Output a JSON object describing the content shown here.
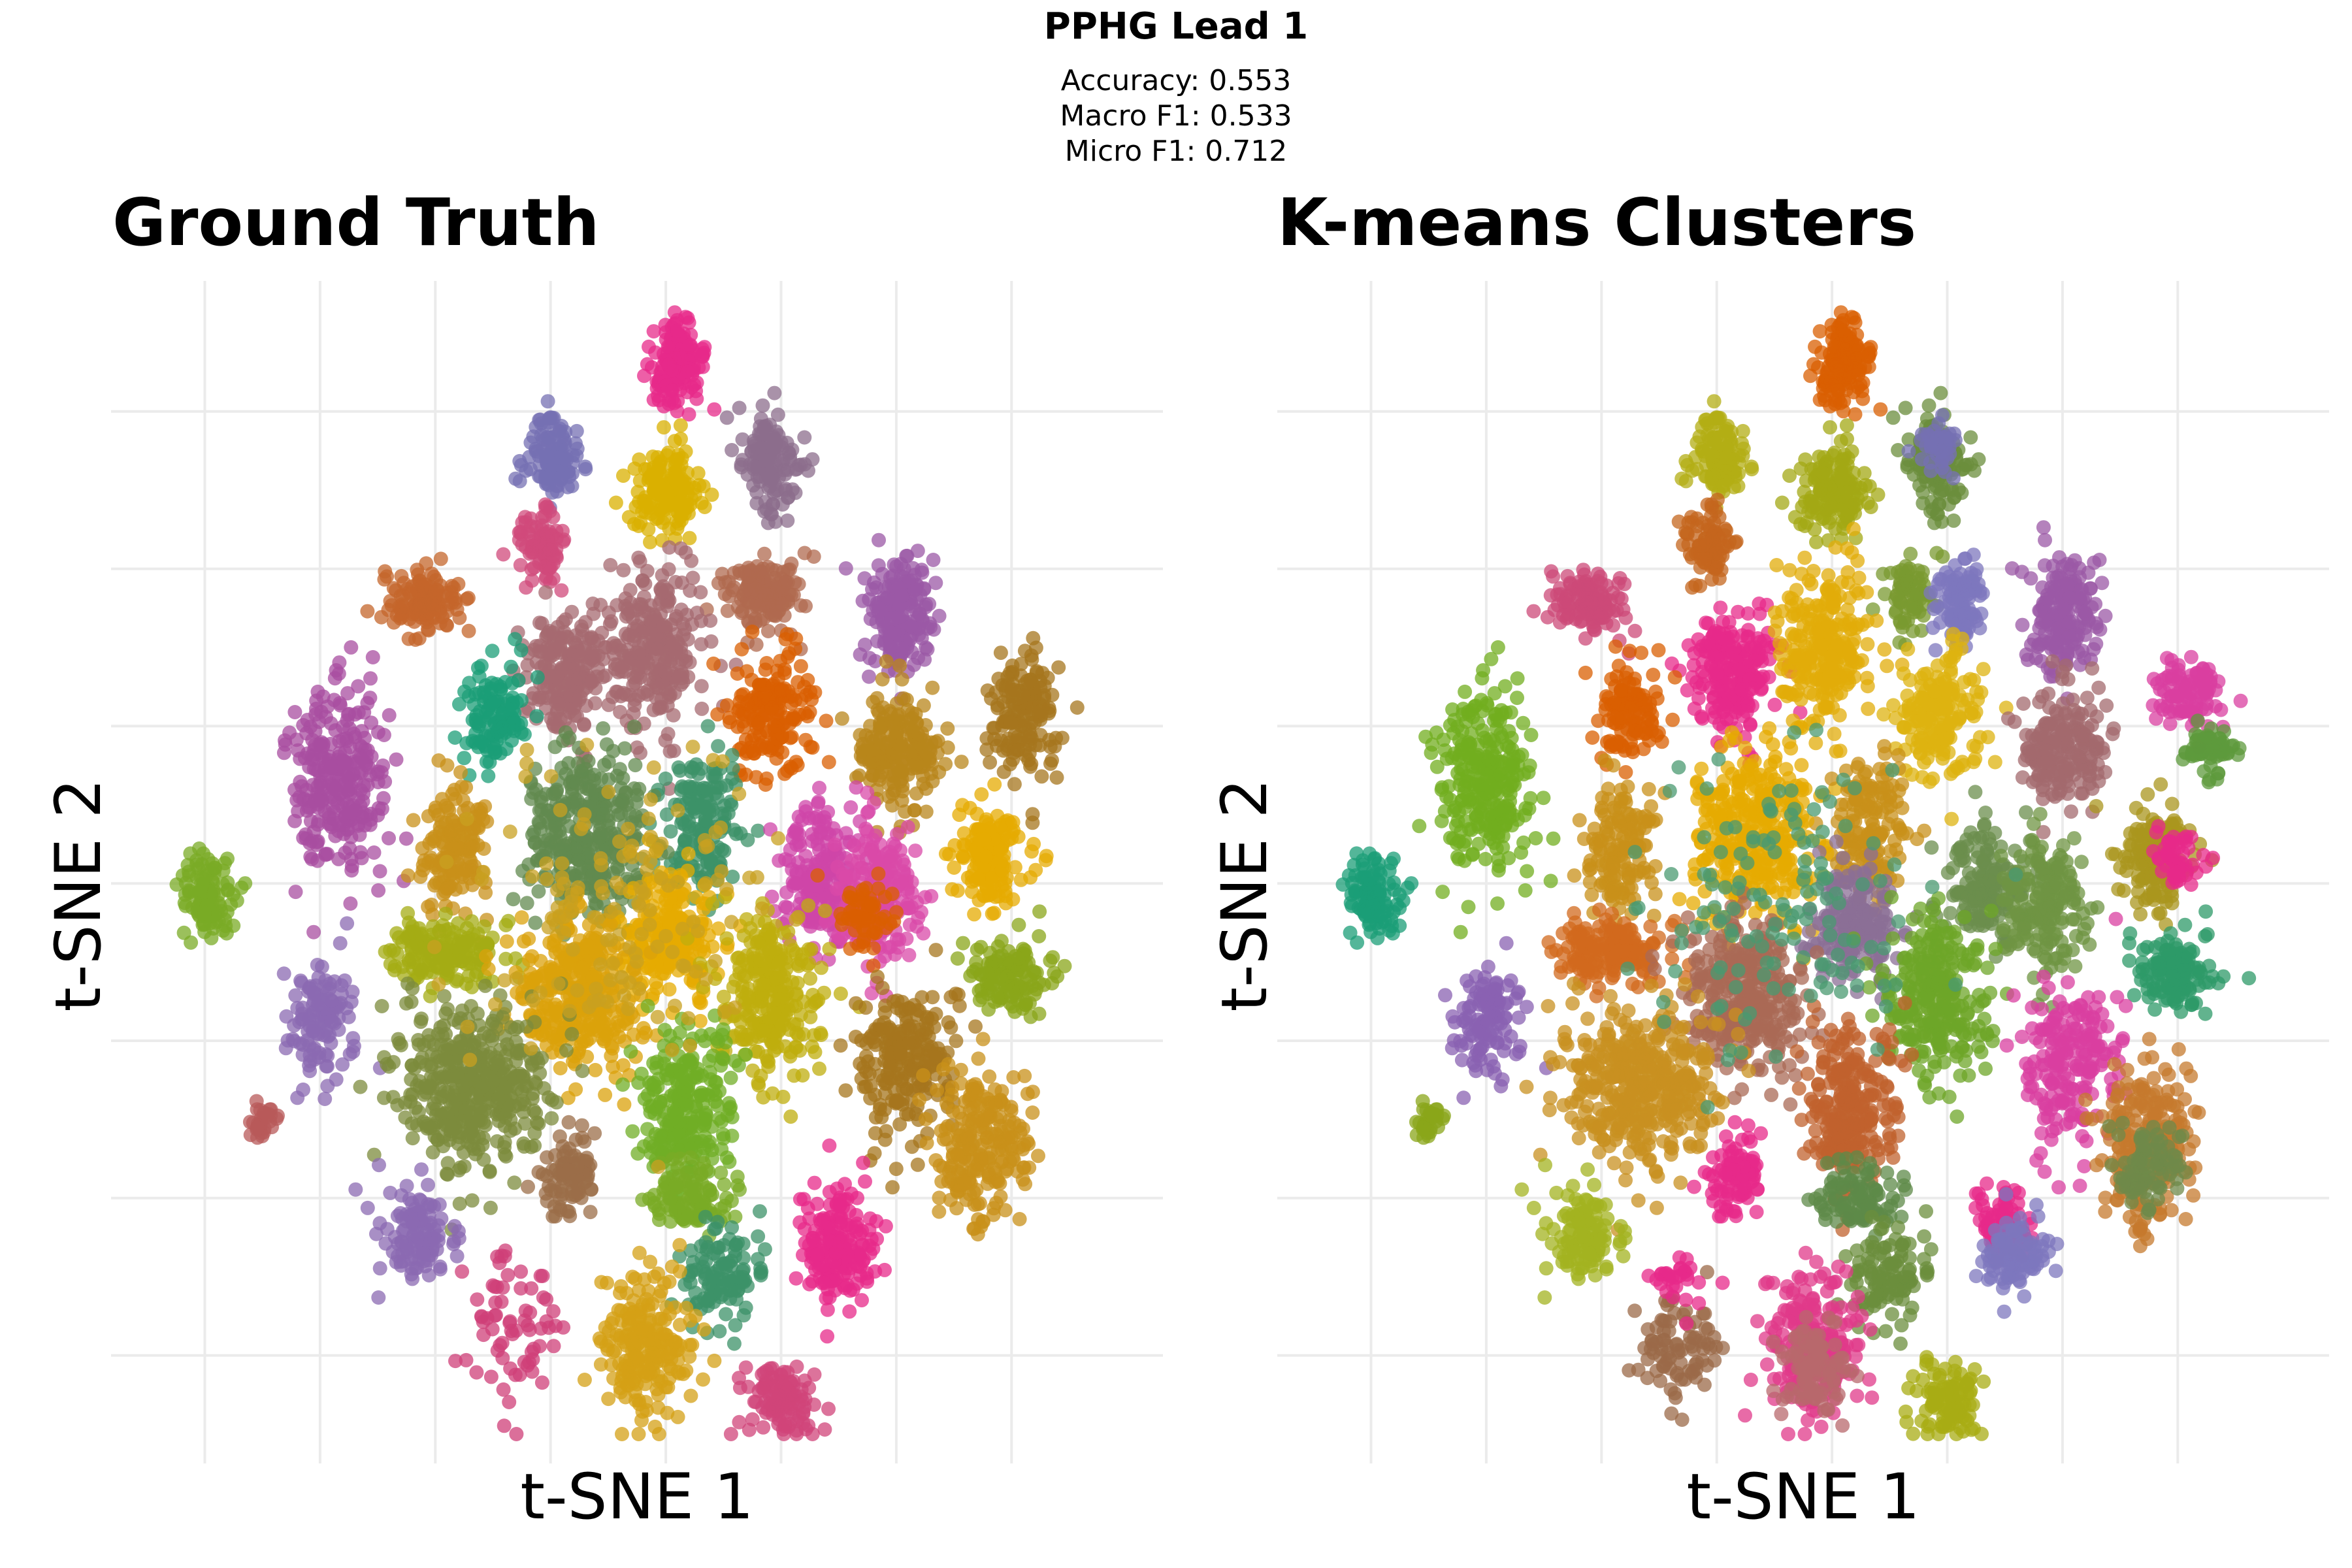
{
  "figure": {
    "title": "PPHG Lead 1",
    "accuracy_label": "Accuracy: 0.553",
    "macro_f1_label": "Macro F1: 0.533",
    "micro_f1_label": "Micro F1: 0.712"
  },
  "chart_data": [
    {
      "type": "scatter",
      "title": "Ground Truth",
      "xlabel": "t-SNE 1",
      "ylabel": "t-SNE 2",
      "xlim": [
        0,
        100
      ],
      "ylim": [
        0,
        100
      ],
      "grid": true,
      "tick_labels_shown": false,
      "legend": "none",
      "x_grid": [
        5,
        17,
        29,
        41,
        53,
        65,
        77,
        89
      ],
      "y_grid": [
        7,
        21,
        35,
        49,
        63,
        77,
        91
      ],
      "clusters": [
        {
          "x": 54,
          "y": 95,
          "sx": 1.4,
          "sy": 2.0,
          "n": 160,
          "color": "#e7298a"
        },
        {
          "x": 41,
          "y": 87,
          "sx": 1.4,
          "sy": 1.8,
          "n": 110,
          "color": "#7570b3"
        },
        {
          "x": 53,
          "y": 84,
          "sx": 1.8,
          "sy": 1.9,
          "n": 150,
          "color": "#d9b000"
        },
        {
          "x": 64,
          "y": 86,
          "sx": 1.5,
          "sy": 2.6,
          "n": 140,
          "color": "#8c6d8c"
        },
        {
          "x": 40,
          "y": 79,
          "sx": 1.3,
          "sy": 1.6,
          "n": 90,
          "color": "#d04a7b"
        },
        {
          "x": 28,
          "y": 74,
          "sx": 1.9,
          "sy": 1.5,
          "n": 130,
          "color": "#c4652b"
        },
        {
          "x": 63,
          "y": 75,
          "sx": 2.0,
          "sy": 1.7,
          "n": 150,
          "color": "#b06a4f"
        },
        {
          "x": 77,
          "y": 73,
          "sx": 1.8,
          "sy": 2.9,
          "n": 180,
          "color": "#9b58a5"
        },
        {
          "x": 43,
          "y": 68,
          "sx": 2.3,
          "sy": 2.6,
          "n": 220,
          "color": "#a66a70"
        },
        {
          "x": 52,
          "y": 70,
          "sx": 2.4,
          "sy": 3.6,
          "n": 260,
          "color": "#a66a70"
        },
        {
          "x": 35,
          "y": 64,
          "sx": 1.7,
          "sy": 2.3,
          "n": 120,
          "color": "#1b9e77"
        },
        {
          "x": 64,
          "y": 64,
          "sx": 2.2,
          "sy": 2.8,
          "n": 180,
          "color": "#d95f02"
        },
        {
          "x": 90,
          "y": 64,
          "sx": 1.8,
          "sy": 2.9,
          "n": 160,
          "color": "#a6761d"
        },
        {
          "x": 77,
          "y": 61,
          "sx": 2.2,
          "sy": 2.5,
          "n": 200,
          "color": "#b8861b"
        },
        {
          "x": 19,
          "y": 58,
          "sx": 2.5,
          "sy": 3.9,
          "n": 280,
          "color": "#a84da0"
        },
        {
          "x": 57,
          "y": 54,
          "sx": 1.9,
          "sy": 3.2,
          "n": 160,
          "color": "#3c9168"
        },
        {
          "x": 45,
          "y": 53,
          "sx": 3.2,
          "sy": 3.8,
          "n": 340,
          "color": "#62894f"
        },
        {
          "x": 31,
          "y": 52,
          "sx": 1.8,
          "sy": 2.9,
          "n": 150,
          "color": "#c8901a"
        },
        {
          "x": 69,
          "y": 50,
          "sx": 2.0,
          "sy": 3.1,
          "n": 200,
          "color": "#cf46a8"
        },
        {
          "x": 75,
          "y": 48,
          "sx": 2.1,
          "sy": 2.9,
          "n": 210,
          "color": "#d94aa8"
        },
        {
          "x": 74,
          "y": 46,
          "sx": 1.6,
          "sy": 1.6,
          "n": 60,
          "color": "#d95f02"
        },
        {
          "x": 87,
          "y": 51,
          "sx": 2.0,
          "sy": 2.1,
          "n": 160,
          "color": "#e6ab02"
        },
        {
          "x": 5,
          "y": 48,
          "sx": 1.5,
          "sy": 1.7,
          "n": 110,
          "color": "#7aab26"
        },
        {
          "x": 53,
          "y": 44,
          "sx": 2.5,
          "sy": 3.0,
          "n": 230,
          "color": "#e6ab02"
        },
        {
          "x": 30,
          "y": 43,
          "sx": 2.9,
          "sy": 1.4,
          "n": 180,
          "color": "#a4ac14"
        },
        {
          "x": 44,
          "y": 39,
          "sx": 3.0,
          "sy": 3.4,
          "n": 340,
          "color": "#dba10b"
        },
        {
          "x": 64,
          "y": 39,
          "sx": 2.6,
          "sy": 3.7,
          "n": 280,
          "color": "#bfad0e"
        },
        {
          "x": 89,
          "y": 41,
          "sx": 2.1,
          "sy": 1.6,
          "n": 130,
          "color": "#89a51a"
        },
        {
          "x": 17,
          "y": 37,
          "sx": 1.6,
          "sy": 2.5,
          "n": 120,
          "color": "#8b6ab1"
        },
        {
          "x": 78,
          "y": 33,
          "sx": 2.6,
          "sy": 3.8,
          "n": 230,
          "color": "#a6761d"
        },
        {
          "x": 33,
          "y": 31,
          "sx": 3.9,
          "sy": 3.4,
          "n": 420,
          "color": "#7c8b3c"
        },
        {
          "x": 55,
          "y": 29,
          "sx": 2.4,
          "sy": 3.5,
          "n": 260,
          "color": "#70ad26"
        },
        {
          "x": 86,
          "y": 26,
          "sx": 2.4,
          "sy": 3.5,
          "n": 230,
          "color": "#c8901a"
        },
        {
          "x": 11,
          "y": 28,
          "sx": 0.8,
          "sy": 1.0,
          "n": 30,
          "color": "#b85a5a"
        },
        {
          "x": 43,
          "y": 23,
          "sx": 1.5,
          "sy": 1.8,
          "n": 90,
          "color": "#9b6e48"
        },
        {
          "x": 56,
          "y": 21,
          "sx": 2.2,
          "sy": 1.6,
          "n": 100,
          "color": "#7aab26"
        },
        {
          "x": 27,
          "y": 18,
          "sx": 1.7,
          "sy": 2.0,
          "n": 120,
          "color": "#8b6ab1"
        },
        {
          "x": 71,
          "y": 17,
          "sx": 2.0,
          "sy": 2.6,
          "n": 190,
          "color": "#e7298a"
        },
        {
          "x": 59,
          "y": 14,
          "sx": 2.2,
          "sy": 2.0,
          "n": 110,
          "color": "#3c9168"
        },
        {
          "x": 37,
          "y": 10,
          "sx": 2.3,
          "sy": 3.6,
          "n": 70,
          "color": "#cf3f78"
        },
        {
          "x": 51,
          "y": 8,
          "sx": 2.3,
          "sy": 3.3,
          "n": 220,
          "color": "#d4a016"
        },
        {
          "x": 65,
          "y": 3,
          "sx": 1.7,
          "sy": 1.8,
          "n": 110,
          "color": "#d0447a"
        },
        {
          "x": 48,
          "y": 47,
          "sx": 7.5,
          "sy": 6.5,
          "n": 140,
          "color": "#c8a020"
        }
      ]
    },
    {
      "type": "scatter",
      "title": "K-means Clusters",
      "xlabel": "t-SNE 1",
      "ylabel": "t-SNE 2",
      "xlim": [
        0,
        100
      ],
      "ylim": [
        0,
        100
      ],
      "grid": true,
      "tick_labels_shown": false,
      "legend": "none",
      "x_grid": [
        5,
        17,
        29,
        41,
        53,
        65,
        77,
        89
      ],
      "y_grid": [
        7,
        21,
        35,
        49,
        63,
        77,
        91
      ],
      "clusters": [
        {
          "x": 54,
          "y": 95,
          "sx": 1.4,
          "sy": 2.0,
          "n": 160,
          "color": "#d95f02"
        },
        {
          "x": 41,
          "y": 87,
          "sx": 1.4,
          "sy": 1.8,
          "n": 110,
          "color": "#b3ad14"
        },
        {
          "x": 53,
          "y": 84,
          "sx": 1.8,
          "sy": 1.9,
          "n": 150,
          "color": "#a3a814"
        },
        {
          "x": 64,
          "y": 86,
          "sx": 1.5,
          "sy": 2.6,
          "n": 140,
          "color": "#6b8e3c"
        },
        {
          "x": 64,
          "y": 88,
          "sx": 1.0,
          "sy": 1.2,
          "n": 40,
          "color": "#7570b3"
        },
        {
          "x": 40,
          "y": 79,
          "sx": 1.3,
          "sy": 1.6,
          "n": 90,
          "color": "#c4651e"
        },
        {
          "x": 28,
          "y": 74,
          "sx": 1.9,
          "sy": 1.5,
          "n": 130,
          "color": "#cc4a78"
        },
        {
          "x": 61,
          "y": 75,
          "sx": 1.3,
          "sy": 1.7,
          "n": 80,
          "color": "#7a9a30"
        },
        {
          "x": 66,
          "y": 74,
          "sx": 1.4,
          "sy": 2.2,
          "n": 100,
          "color": "#7d77bd"
        },
        {
          "x": 77,
          "y": 73,
          "sx": 1.8,
          "sy": 2.9,
          "n": 180,
          "color": "#9b58a5"
        },
        {
          "x": 43,
          "y": 68,
          "sx": 2.3,
          "sy": 2.6,
          "n": 220,
          "color": "#e7298a"
        },
        {
          "x": 52,
          "y": 70,
          "sx": 2.4,
          "sy": 3.6,
          "n": 260,
          "color": "#e2ac0a"
        },
        {
          "x": 32,
          "y": 64,
          "sx": 1.7,
          "sy": 2.3,
          "n": 120,
          "color": "#d95f02"
        },
        {
          "x": 64,
          "y": 64,
          "sx": 2.2,
          "sy": 2.8,
          "n": 180,
          "color": "#ddb310"
        },
        {
          "x": 90,
          "y": 66,
          "sx": 1.8,
          "sy": 1.6,
          "n": 100,
          "color": "#d93fa0"
        },
        {
          "x": 92,
          "y": 61,
          "sx": 1.4,
          "sy": 1.0,
          "n": 60,
          "color": "#5d9a3c"
        },
        {
          "x": 77,
          "y": 61,
          "sx": 2.2,
          "sy": 2.5,
          "n": 200,
          "color": "#a36a6e"
        },
        {
          "x": 17,
          "y": 58,
          "sx": 2.5,
          "sy": 3.9,
          "n": 280,
          "color": "#72ad1f"
        },
        {
          "x": 57,
          "y": 54,
          "sx": 1.9,
          "sy": 3.2,
          "n": 160,
          "color": "#c8901a"
        },
        {
          "x": 45,
          "y": 53,
          "sx": 3.2,
          "sy": 3.8,
          "n": 340,
          "color": "#e6ab02"
        },
        {
          "x": 31,
          "y": 52,
          "sx": 1.8,
          "sy": 2.9,
          "n": 150,
          "color": "#c8901a"
        },
        {
          "x": 69,
          "y": 49,
          "sx": 2.2,
          "sy": 2.6,
          "n": 160,
          "color": "#6b8e4c"
        },
        {
          "x": 75,
          "y": 47,
          "sx": 2.1,
          "sy": 2.9,
          "n": 180,
          "color": "#6f9443"
        },
        {
          "x": 87,
          "y": 51,
          "sx": 2.0,
          "sy": 2.1,
          "n": 160,
          "color": "#a9951e"
        },
        {
          "x": 89,
          "y": 51,
          "sx": 1.3,
          "sy": 1.3,
          "n": 50,
          "color": "#e7298a"
        },
        {
          "x": 5,
          "y": 48,
          "sx": 1.5,
          "sy": 1.7,
          "n": 110,
          "color": "#1b9e77"
        },
        {
          "x": 55,
          "y": 45,
          "sx": 2.2,
          "sy": 2.6,
          "n": 180,
          "color": "#8b6f95"
        },
        {
          "x": 30,
          "y": 43,
          "sx": 2.9,
          "sy": 1.4,
          "n": 180,
          "color": "#d2691e"
        },
        {
          "x": 44,
          "y": 39,
          "sx": 3.0,
          "sy": 3.4,
          "n": 340,
          "color": "#a96a55"
        },
        {
          "x": 64,
          "y": 39,
          "sx": 2.6,
          "sy": 3.7,
          "n": 280,
          "color": "#6ea628"
        },
        {
          "x": 89,
          "y": 41,
          "sx": 2.1,
          "sy": 1.6,
          "n": 130,
          "color": "#2e9a68"
        },
        {
          "x": 17,
          "y": 37,
          "sx": 1.6,
          "sy": 2.5,
          "n": 120,
          "color": "#8a62b1"
        },
        {
          "x": 78,
          "y": 33,
          "sx": 2.6,
          "sy": 3.8,
          "n": 200,
          "color": "#d93fa0"
        },
        {
          "x": 33,
          "y": 31,
          "sx": 3.9,
          "sy": 3.4,
          "n": 420,
          "color": "#c89020"
        },
        {
          "x": 55,
          "y": 29,
          "sx": 2.4,
          "sy": 3.5,
          "n": 260,
          "color": "#c0622e"
        },
        {
          "x": 86,
          "y": 26,
          "sx": 2.4,
          "sy": 3.5,
          "n": 230,
          "color": "#c57a2e"
        },
        {
          "x": 86,
          "y": 24,
          "sx": 1.6,
          "sy": 2.0,
          "n": 90,
          "color": "#6f8a4a"
        },
        {
          "x": 11,
          "y": 28,
          "sx": 0.8,
          "sy": 1.0,
          "n": 30,
          "color": "#89a51a"
        },
        {
          "x": 43,
          "y": 23,
          "sx": 1.5,
          "sy": 1.8,
          "n": 90,
          "color": "#e7298a"
        },
        {
          "x": 56,
          "y": 21,
          "sx": 2.2,
          "sy": 1.6,
          "n": 100,
          "color": "#5d8a48"
        },
        {
          "x": 27,
          "y": 18,
          "sx": 1.7,
          "sy": 2.0,
          "n": 120,
          "color": "#a3b320"
        },
        {
          "x": 71,
          "y": 19,
          "sx": 1.5,
          "sy": 1.6,
          "n": 80,
          "color": "#e7298a"
        },
        {
          "x": 72,
          "y": 16,
          "sx": 1.8,
          "sy": 1.6,
          "n": 110,
          "color": "#7d77bd"
        },
        {
          "x": 59,
          "y": 14,
          "sx": 2.2,
          "sy": 2.0,
          "n": 110,
          "color": "#6b8e3c"
        },
        {
          "x": 37,
          "y": 8,
          "sx": 2.0,
          "sy": 2.4,
          "n": 90,
          "color": "#9b6a48"
        },
        {
          "x": 37,
          "y": 14,
          "sx": 1.5,
          "sy": 1.2,
          "n": 30,
          "color": "#e7298a"
        },
        {
          "x": 51,
          "y": 8,
          "sx": 2.3,
          "sy": 3.3,
          "n": 220,
          "color": "#e03a8a"
        },
        {
          "x": 51,
          "y": 6,
          "sx": 1.6,
          "sy": 2.0,
          "n": 100,
          "color": "#b8686c"
        },
        {
          "x": 65,
          "y": 3,
          "sx": 1.7,
          "sy": 1.8,
          "n": 110,
          "color": "#a8ac14"
        },
        {
          "x": 48,
          "y": 47,
          "sx": 7.5,
          "sy": 6.5,
          "n": 140,
          "color": "#4a9a70"
        }
      ]
    }
  ]
}
